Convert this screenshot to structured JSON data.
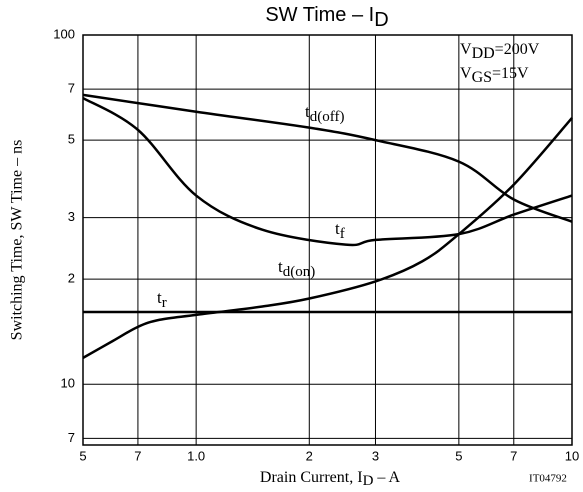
{
  "chart_data": {
    "type": "line",
    "title": {
      "text": "SW Time  –  I",
      "sub": "D"
    },
    "x_label": {
      "text": "Drain Current, I",
      "sub": "D",
      "rest": "  –  A"
    },
    "y_label": "Switching Time, SW Time  –  ns",
    "code": "IT04792",
    "conditions": [
      {
        "text": "V",
        "sub": "DD",
        "rest": "=200V"
      },
      {
        "text": "V",
        "sub": "GS",
        "rest": "=15V"
      }
    ],
    "log_x": true,
    "log_y": true,
    "grid": true,
    "xlim": [
      0.5,
      10
    ],
    "ylim": [
      6.7,
      100
    ],
    "xticks": [
      {
        "value": 0.5,
        "label": "5"
      },
      {
        "value": 0.7,
        "label": "7"
      },
      {
        "value": 1,
        "label": "1.0"
      },
      2,
      3,
      5,
      7,
      10
    ],
    "yticks": [
      {
        "value": 7,
        "label": "7"
      },
      10,
      {
        "value": 20,
        "label": "2"
      },
      {
        "value": 30,
        "label": "3"
      },
      {
        "value": 50,
        "label": "5"
      },
      {
        "value": 70,
        "label": "7"
      },
      100
    ],
    "series": [
      {
        "label": {
          "text": "t",
          "sub": "d(off)"
        },
        "color": "#000",
        "x": [
          0.5,
          1,
          2,
          3,
          5,
          7,
          10
        ],
        "values": [
          67.4,
          60.3,
          54.3,
          50,
          43.4,
          33.8,
          29.2
        ]
      },
      {
        "label": {
          "text": "t",
          "sub": "f"
        },
        "color": "#000",
        "x": [
          0.5,
          0.7,
          1,
          1.5,
          2.5,
          3,
          5,
          7,
          10
        ],
        "values": [
          66,
          53.5,
          34.7,
          27.7,
          25.1,
          25.9,
          26.9,
          30.6,
          34.7
        ]
      },
      {
        "label": {
          "text": "t",
          "sub": "d(on)"
        },
        "color": "#000",
        "x": [
          0.5,
          10
        ],
        "values": [
          16.1,
          16.1
        ]
      },
      {
        "label": {
          "text": "t",
          "sub": "r"
        },
        "color": "#000",
        "x": [
          0.5,
          0.6,
          0.7,
          0.8,
          1,
          1.5,
          2,
          3,
          4,
          5,
          7,
          10
        ],
        "values": [
          11.9,
          13.3,
          14.6,
          15.3,
          15.8,
          16.7,
          17.6,
          19.7,
          22.5,
          26.9,
          37.3,
          57.9
        ]
      }
    ]
  }
}
